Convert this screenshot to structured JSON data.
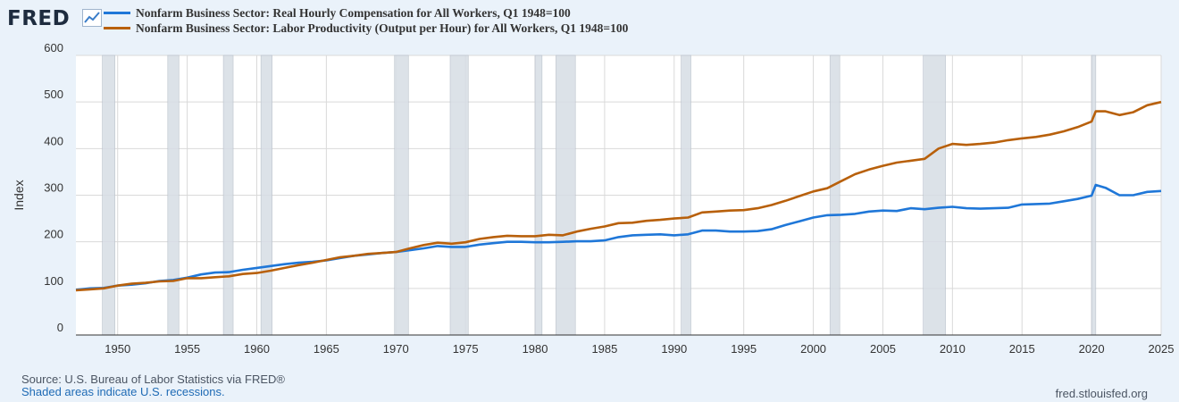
{
  "brand": {
    "logo_text": "FRED",
    "logo_icon": "trend-line-icon"
  },
  "legend": [
    {
      "label": "Nonfarm Business Sector: Real Hourly Compensation for All Workers, Q1 1948=100",
      "color": "#1f77d8"
    },
    {
      "label": "Nonfarm Business Sector: Labor Productivity (Output per Hour) for All Workers, Q1 1948=100",
      "color": "#b8600b"
    }
  ],
  "footer": {
    "source": "Source: U.S. Bureau of Labor Statistics via FRED®",
    "note": "Shaded areas indicate U.S. recessions.",
    "site": "fred.stlouisfed.org"
  },
  "chart_data": {
    "type": "line",
    "ylabel": "Index",
    "xlim": [
      1947,
      2025
    ],
    "ylim": [
      0,
      600
    ],
    "yticks": [
      0,
      100,
      200,
      300,
      400,
      500,
      600
    ],
    "xticks": [
      1950,
      1955,
      1960,
      1965,
      1970,
      1975,
      1980,
      1985,
      1990,
      1995,
      2000,
      2005,
      2010,
      2015,
      2020,
      2025
    ],
    "grid": true,
    "legend_position": "top",
    "recessions": [
      [
        1948.9,
        1949.8
      ],
      [
        1953.6,
        1954.4
      ],
      [
        1957.6,
        1958.3
      ],
      [
        1960.3,
        1961.1
      ],
      [
        1969.9,
        1970.9
      ],
      [
        1973.9,
        1975.2
      ],
      [
        1980.0,
        1980.5
      ],
      [
        1981.5,
        1982.9
      ],
      [
        1990.5,
        1991.2
      ],
      [
        2001.2,
        2001.9
      ],
      [
        2007.9,
        2009.5
      ],
      [
        2020.0,
        2020.3
      ]
    ],
    "series": [
      {
        "name": "Nonfarm Business Sector: Real Hourly Compensation for All Workers, Q1 1948=100",
        "color": "#1f77d8",
        "x": [
          1947,
          1948,
          1949,
          1950,
          1951,
          1952,
          1953,
          1954,
          1955,
          1956,
          1957,
          1958,
          1959,
          1960,
          1961,
          1962,
          1963,
          1964,
          1965,
          1966,
          1967,
          1968,
          1969,
          1970,
          1971,
          1972,
          1973,
          1974,
          1975,
          1976,
          1977,
          1978,
          1979,
          1980,
          1981,
          1982,
          1983,
          1984,
          1985,
          1986,
          1987,
          1988,
          1989,
          1990,
          1991,
          1992,
          1993,
          1994,
          1995,
          1996,
          1997,
          1998,
          1999,
          2000,
          2001,
          2002,
          2003,
          2004,
          2005,
          2006,
          2007,
          2008,
          2009,
          2010,
          2011,
          2012,
          2013,
          2014,
          2015,
          2016,
          2017,
          2018,
          2019,
          2020,
          2020.3,
          2021,
          2022,
          2023,
          2024,
          2025
        ],
        "y": [
          97,
          100,
          101,
          106,
          108,
          111,
          116,
          118,
          123,
          130,
          134,
          135,
          140,
          144,
          148,
          152,
          155,
          157,
          160,
          165,
          170,
          173,
          176,
          178,
          182,
          186,
          191,
          189,
          189,
          194,
          197,
          200,
          200,
          199,
          199,
          200,
          201,
          201,
          203,
          210,
          214,
          215,
          216,
          214,
          216,
          224,
          224,
          222,
          222,
          223,
          227,
          236,
          244,
          252,
          257,
          258,
          260,
          265,
          267,
          266,
          272,
          270,
          273,
          275,
          272,
          271,
          272,
          273,
          280,
          281,
          282,
          287,
          292,
          299,
          322,
          316,
          300,
          300,
          307,
          309
        ]
      },
      {
        "name": "Nonfarm Business Sector: Labor Productivity (Output per Hour) for All Workers, Q1 1948=100",
        "color": "#b8600b",
        "x": [
          1947,
          1948,
          1949,
          1950,
          1951,
          1952,
          1953,
          1954,
          1955,
          1956,
          1957,
          1958,
          1959,
          1960,
          1961,
          1962,
          1963,
          1964,
          1965,
          1966,
          1967,
          1968,
          1969,
          1970,
          1971,
          1972,
          1973,
          1974,
          1975,
          1976,
          1977,
          1978,
          1979,
          1980,
          1981,
          1982,
          1983,
          1984,
          1985,
          1986,
          1987,
          1988,
          1989,
          1990,
          1991,
          1992,
          1993,
          1994,
          1995,
          1996,
          1997,
          1998,
          1999,
          2000,
          2001,
          2002,
          2003,
          2004,
          2005,
          2006,
          2007,
          2008,
          2009,
          2010,
          2011,
          2012,
          2013,
          2014,
          2015,
          2016,
          2017,
          2018,
          2019,
          2020,
          2020.3,
          2021,
          2022,
          2023,
          2024,
          2025
        ],
        "y": [
          96,
          98,
          100,
          106,
          110,
          112,
          115,
          116,
          122,
          122,
          124,
          126,
          131,
          133,
          138,
          144,
          150,
          155,
          161,
          167,
          170,
          174,
          176,
          178,
          186,
          193,
          198,
          196,
          199,
          206,
          210,
          213,
          212,
          212,
          215,
          214,
          222,
          228,
          233,
          240,
          241,
          245,
          247,
          250,
          252,
          263,
          265,
          267,
          268,
          272,
          279,
          288,
          298,
          308,
          315,
          330,
          345,
          355,
          363,
          370,
          374,
          378,
          400,
          410,
          408,
          410,
          413,
          418,
          422,
          425,
          430,
          437,
          446,
          458,
          480,
          480,
          472,
          478,
          493,
          500
        ]
      }
    ]
  }
}
